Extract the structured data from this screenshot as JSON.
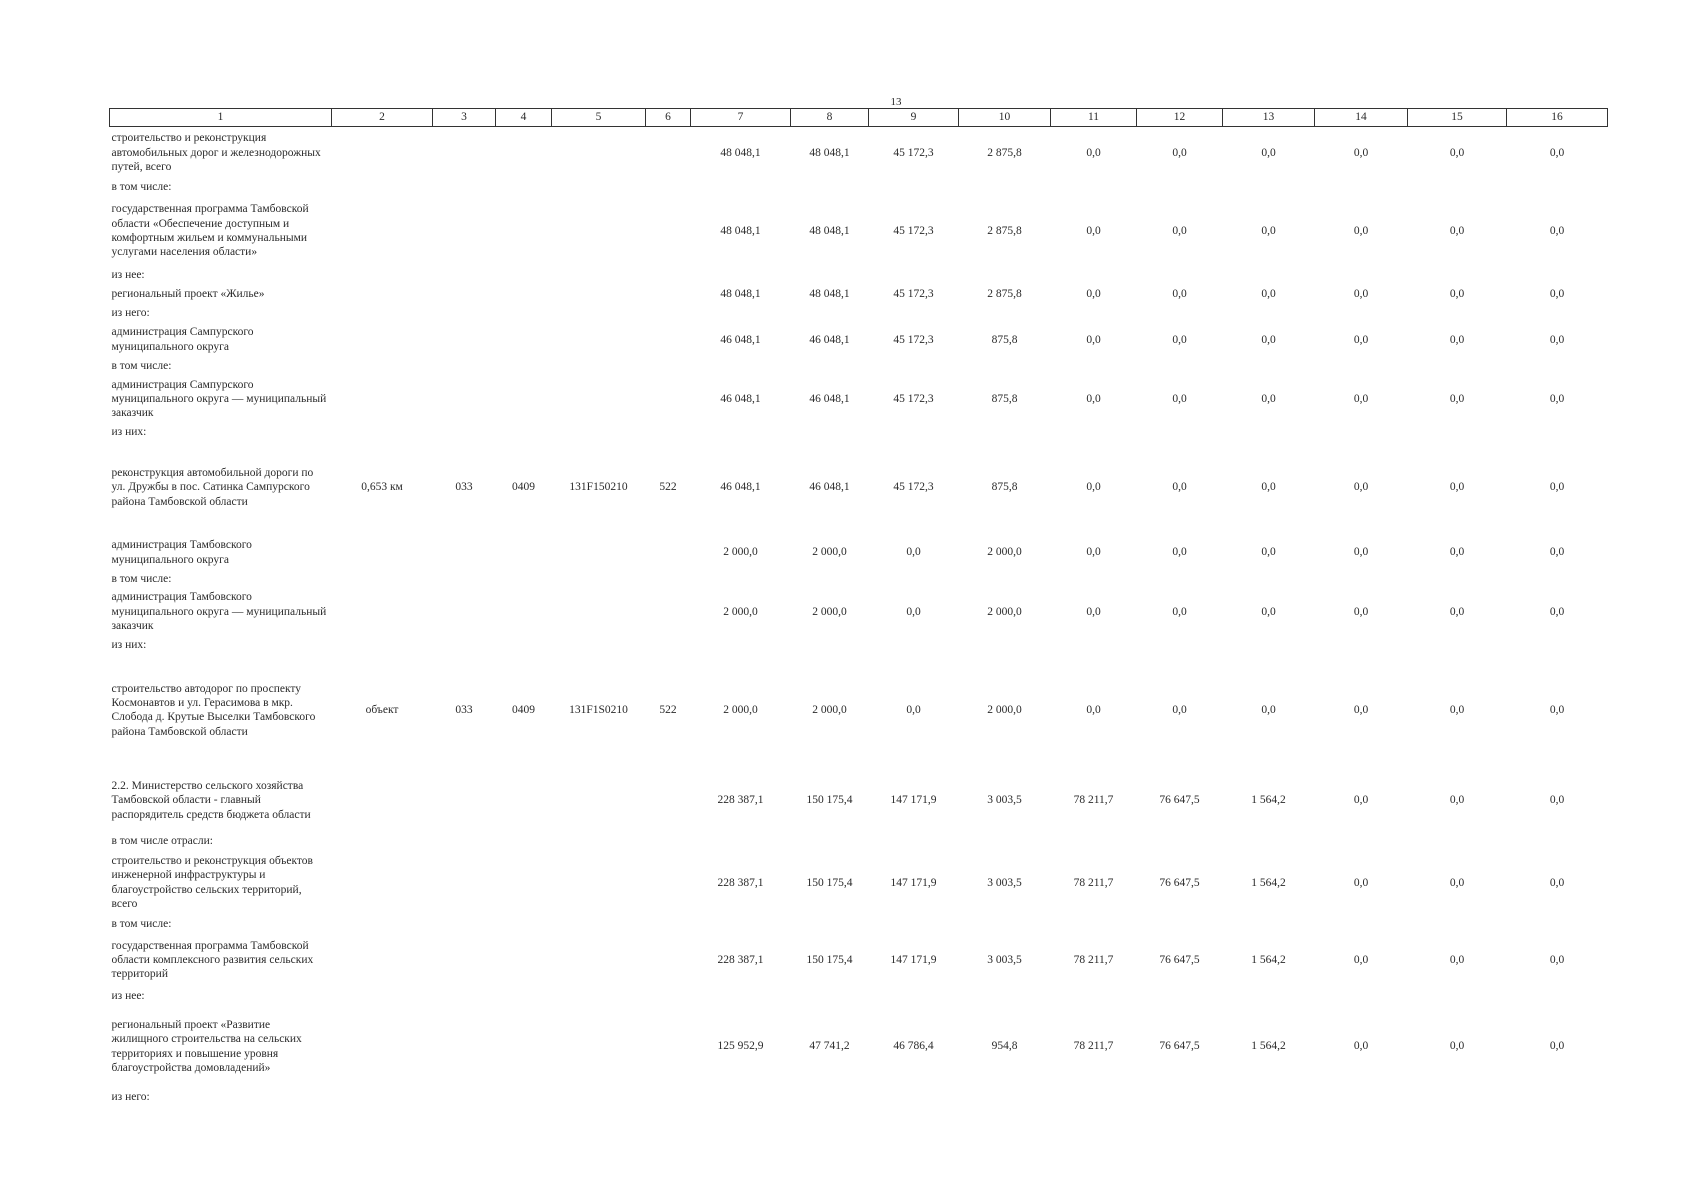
{
  "page_number": "13",
  "columns": [
    "1",
    "2",
    "3",
    "4",
    "5",
    "6",
    "7",
    "8",
    "9",
    "10",
    "11",
    "12",
    "13",
    "14",
    "15",
    "16"
  ],
  "rows": [
    {
      "type": "data",
      "h": 52,
      "label": "строительство и реконструкция автомобильных дорог и железнодорожных путей, всего",
      "c2": "",
      "c3": "",
      "c4": "",
      "c5": "",
      "c6": "",
      "v": [
        "48 048,1",
        "48 048,1",
        "45 172,3",
        "2 875,8",
        "0,0",
        "0,0",
        "0,0",
        "0,0",
        "0,0",
        "0,0"
      ]
    },
    {
      "type": "sub",
      "h": 16,
      "label": "в том числе:"
    },
    {
      "type": "data",
      "h": 72,
      "label": "государственная программа Тамбовской области «Обеспечение доступным и комфортным жильем и коммунальными услугами населения области»",
      "c2": "",
      "c3": "",
      "c4": "",
      "c5": "",
      "c6": "",
      "v": [
        "48 048,1",
        "48 048,1",
        "45 172,3",
        "2 875,8",
        "0,0",
        "0,0",
        "0,0",
        "0,0",
        "0,0",
        "0,0"
      ]
    },
    {
      "type": "sub",
      "h": 16,
      "label": "из нее:"
    },
    {
      "type": "data",
      "h": 22,
      "label": "региональный проект «Жилье»",
      "c2": "",
      "c3": "",
      "c4": "",
      "c5": "",
      "c6": "",
      "v": [
        "48 048,1",
        "48 048,1",
        "45 172,3",
        "2 875,8",
        "0,0",
        "0,0",
        "0,0",
        "0,0",
        "0,0",
        "0,0"
      ]
    },
    {
      "type": "sub",
      "h": 16,
      "label": "из него:"
    },
    {
      "type": "data",
      "h": 36,
      "label": "администрация Сампурского муниципального округа",
      "c2": "",
      "c3": "",
      "c4": "",
      "c5": "",
      "c6": "",
      "v": [
        "46 048,1",
        "46 048,1",
        "45 172,3",
        "875,8",
        "0,0",
        "0,0",
        "0,0",
        "0,0",
        "0,0",
        "0,0"
      ]
    },
    {
      "type": "sub",
      "h": 16,
      "label": "в том числе:"
    },
    {
      "type": "data",
      "h": 50,
      "label": "администрация Сампурского муниципального округа — муниципальный заказчик",
      "c2": "",
      "c3": "",
      "c4": "",
      "c5": "",
      "c6": "",
      "v": [
        "46 048,1",
        "46 048,1",
        "45 172,3",
        "875,8",
        "0,0",
        "0,0",
        "0,0",
        "0,0",
        "0,0",
        "0,0"
      ]
    },
    {
      "type": "sub",
      "h": 16,
      "label": "из них:"
    },
    {
      "type": "data",
      "h": 94,
      "label": "реконструкция автомобильной дороги по ул. Дружбы в пос. Сатинка Сампурского района Тамбовской области",
      "c2": "0,653 км",
      "c3": "033",
      "c4": "0409",
      "c5": "131F150210",
      "c6": "522",
      "v": [
        "46 048,1",
        "46 048,1",
        "45 172,3",
        "875,8",
        "0,0",
        "0,0",
        "0,0",
        "0,0",
        "0,0",
        "0,0"
      ]
    },
    {
      "type": "data",
      "h": 36,
      "label": "администрация Тамбовского муниципального округа",
      "c2": "",
      "c3": "",
      "c4": "",
      "c5": "",
      "c6": "",
      "v": [
        "2 000,0",
        "2 000,0",
        "0,0",
        "2 000,0",
        "0,0",
        "0,0",
        "0,0",
        "0,0",
        "0,0",
        "0,0"
      ]
    },
    {
      "type": "sub",
      "h": 16,
      "label": "в том числе:"
    },
    {
      "type": "data",
      "h": 50,
      "label": "администрация Тамбовского муниципального округа — муниципальный заказчик",
      "c2": "",
      "c3": "",
      "c4": "",
      "c5": "",
      "c6": "",
      "v": [
        "2 000,0",
        "2 000,0",
        "0,0",
        "2 000,0",
        "0,0",
        "0,0",
        "0,0",
        "0,0",
        "0,0",
        "0,0"
      ]
    },
    {
      "type": "sub",
      "h": 16,
      "label": "из них:"
    },
    {
      "type": "data",
      "h": 114,
      "label": "строительство автодорог по проспекту Космонавтов и ул. Герасимова в мкр. Слобода д. Крутые Выселки Тамбовского района Тамбовской области",
      "c2": "объект",
      "c3": "033",
      "c4": "0409",
      "c5": "131F1S0210",
      "c6": "522",
      "v": [
        "2 000,0",
        "2 000,0",
        "0,0",
        "2 000,0",
        "0,0",
        "0,0",
        "0,0",
        "0,0",
        "0,0",
        "0,0"
      ]
    },
    {
      "type": "data",
      "h": 66,
      "label": "2.2. Министерство сельского хозяйства Тамбовской области - главный распорядитель средств бюджета области",
      "c2": "",
      "c3": "",
      "c4": "",
      "c5": "",
      "c6": "",
      "v": [
        "228 387,1",
        "150 175,4",
        "147 171,9",
        "3 003,5",
        "78 211,7",
        "76 647,5",
        "1 564,2",
        "0,0",
        "0,0",
        "0,0"
      ]
    },
    {
      "type": "sub",
      "h": 16,
      "label": "в том числе отрасли:"
    },
    {
      "type": "data",
      "h": 66,
      "label": "строительство и реконструкция объектов инженерной инфраструктуры и благоустройство сельских территорий, всего",
      "c2": "",
      "c3": "",
      "c4": "",
      "c5": "",
      "c6": "",
      "v": [
        "228 387,1",
        "150 175,4",
        "147 171,9",
        "3 003,5",
        "78 211,7",
        "76 647,5",
        "1 564,2",
        "0,0",
        "0,0",
        "0,0"
      ]
    },
    {
      "type": "sub",
      "h": 16,
      "label": "в том числе:"
    },
    {
      "type": "data",
      "h": 56,
      "label": "государственная программа Тамбовской области комплексного развития сельских территорий",
      "c2": "",
      "c3": "",
      "c4": "",
      "c5": "",
      "c6": "",
      "v": [
        "228 387,1",
        "150 175,4",
        "147 171,9",
        "3 003,5",
        "78 211,7",
        "76 647,5",
        "1 564,2",
        "0,0",
        "0,0",
        "0,0"
      ]
    },
    {
      "type": "sub",
      "h": 16,
      "label": "из нее:"
    },
    {
      "type": "data",
      "h": 84,
      "label": "региональный проект «Развитие жилищного строительства на сельских территориях и повышение уровня благоустройства домовладений»",
      "c2": "",
      "c3": "",
      "c4": "",
      "c5": "",
      "c6": "",
      "v": [
        "125 952,9",
        "47 741,2",
        "46 786,4",
        "954,8",
        "78 211,7",
        "76 647,5",
        "1 564,2",
        "0,0",
        "0,0",
        "0,0"
      ]
    },
    {
      "type": "sub",
      "h": 16,
      "label": "из него:"
    }
  ]
}
